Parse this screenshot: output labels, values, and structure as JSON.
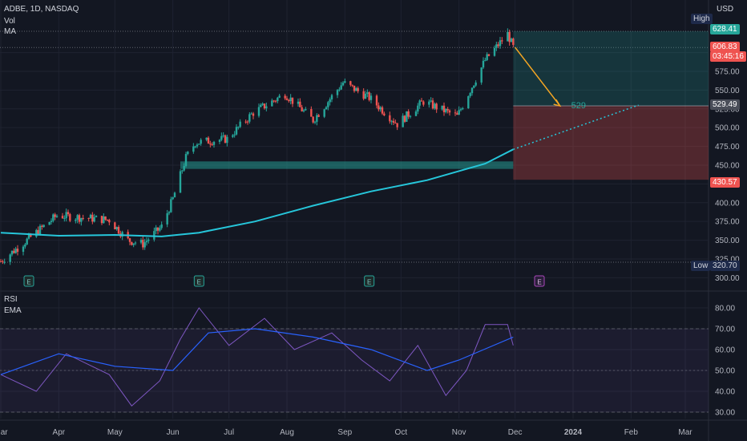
{
  "chart_data": {
    "type": "line",
    "header": {
      "symbol": "ADBE, 1D, NASDAQ",
      "ind_vol": "Vol",
      "ind_ma": "MA",
      "ind_rsi": "RSI",
      "ind_ema": "EMA",
      "currency": "USD"
    },
    "x_ticks": [
      "Mar",
      "Apr",
      "May",
      "Jun",
      "Jul",
      "Aug",
      "Sep",
      "Oct",
      "Nov",
      "Dec",
      "2024",
      "Feb",
      "Mar"
    ],
    "price_axis": {
      "ylim": [
        290,
        635
      ],
      "ticks": [
        600,
        575,
        550,
        525,
        500,
        475,
        450,
        425,
        400,
        375,
        350,
        325,
        300
      ]
    },
    "rsi_axis": {
      "ylim": [
        28,
        86
      ],
      "ticks": [
        80,
        70,
        60,
        50,
        40,
        30
      ],
      "band": [
        30,
        70
      ]
    },
    "tags": {
      "high_label": "High",
      "high_value": "628.41",
      "last_price": "606.83",
      "countdown": "03:45:16",
      "target_level": "529.49",
      "stop_level": "430.57",
      "low_label": "Low",
      "low_value": "320.70"
    },
    "annotation_text": "529",
    "earnings_marker": "E",
    "colors": {
      "up": "#26a69a",
      "down": "#ef5350",
      "ma": "#26c6da",
      "rsi": "#7e57c2",
      "ema": "#2962ff",
      "arrow": "#f5a623"
    },
    "series": [
      {
        "name": "Close",
        "x": [
          "2023-03-01",
          "2023-03-15",
          "2023-03-31",
          "2023-04-14",
          "2023-04-28",
          "2023-05-08",
          "2023-05-16",
          "2023-05-26",
          "2023-06-01",
          "2023-06-08",
          "2023-06-13",
          "2023-06-30",
          "2023-07-14",
          "2023-07-31",
          "2023-08-15",
          "2023-08-31",
          "2023-09-14",
          "2023-09-29",
          "2023-10-13",
          "2023-10-31",
          "2023-11-15",
          "2023-11-27",
          "2023-11-30"
        ],
        "values": [
          322,
          350,
          383,
          380,
          377,
          350,
          345,
          368,
          405,
          460,
          480,
          485,
          520,
          545,
          510,
          560,
          540,
          505,
          535,
          515,
          590,
          625,
          606.83
        ]
      },
      {
        "name": "MA",
        "x": [
          "2023-03-01",
          "2023-04-01",
          "2023-05-01",
          "2023-05-26",
          "2023-06-15",
          "2023-07-15",
          "2023-08-15",
          "2023-09-15",
          "2023-10-15",
          "2023-11-15",
          "2023-11-30"
        ],
        "values": [
          360,
          356,
          357,
          355,
          360,
          375,
          396,
          415,
          430,
          452,
          471
        ]
      },
      {
        "name": "RSI",
        "x": [
          "2023-03-01",
          "2023-03-20",
          "2023-04-05",
          "2023-04-28",
          "2023-05-10",
          "2023-05-25",
          "2023-06-05",
          "2023-06-15",
          "2023-07-01",
          "2023-07-20",
          "2023-08-05",
          "2023-08-25",
          "2023-09-10",
          "2023-09-25",
          "2023-10-10",
          "2023-10-25",
          "2023-11-05",
          "2023-11-15",
          "2023-11-27",
          "2023-11-30"
        ],
        "values": [
          48,
          40,
          58,
          48,
          33,
          45,
          65,
          80,
          62,
          75,
          60,
          68,
          55,
          45,
          62,
          38,
          50,
          72,
          72,
          62
        ]
      },
      {
        "name": "EMA",
        "x": [
          "2023-03-01",
          "2023-04-01",
          "2023-05-01",
          "2023-06-01",
          "2023-06-20",
          "2023-07-15",
          "2023-08-15",
          "2023-09-15",
          "2023-10-15",
          "2023-11-01",
          "2023-11-30"
        ],
        "values": [
          48,
          58,
          52,
          50,
          68,
          70,
          66,
          60,
          50,
          55,
          66
        ]
      }
    ],
    "levels": {
      "target_price": 529,
      "stop_price": 430.57,
      "entry_price": 628.41,
      "demand_zone": [
        445,
        455
      ],
      "projection_end": {
        "x": "2024-02-05",
        "y": 530
      },
      "arrow_from": {
        "x": "2023-12-01",
        "y": 607
      },
      "arrow_to": {
        "x": "2023-12-25",
        "y": 529
      }
    }
  }
}
